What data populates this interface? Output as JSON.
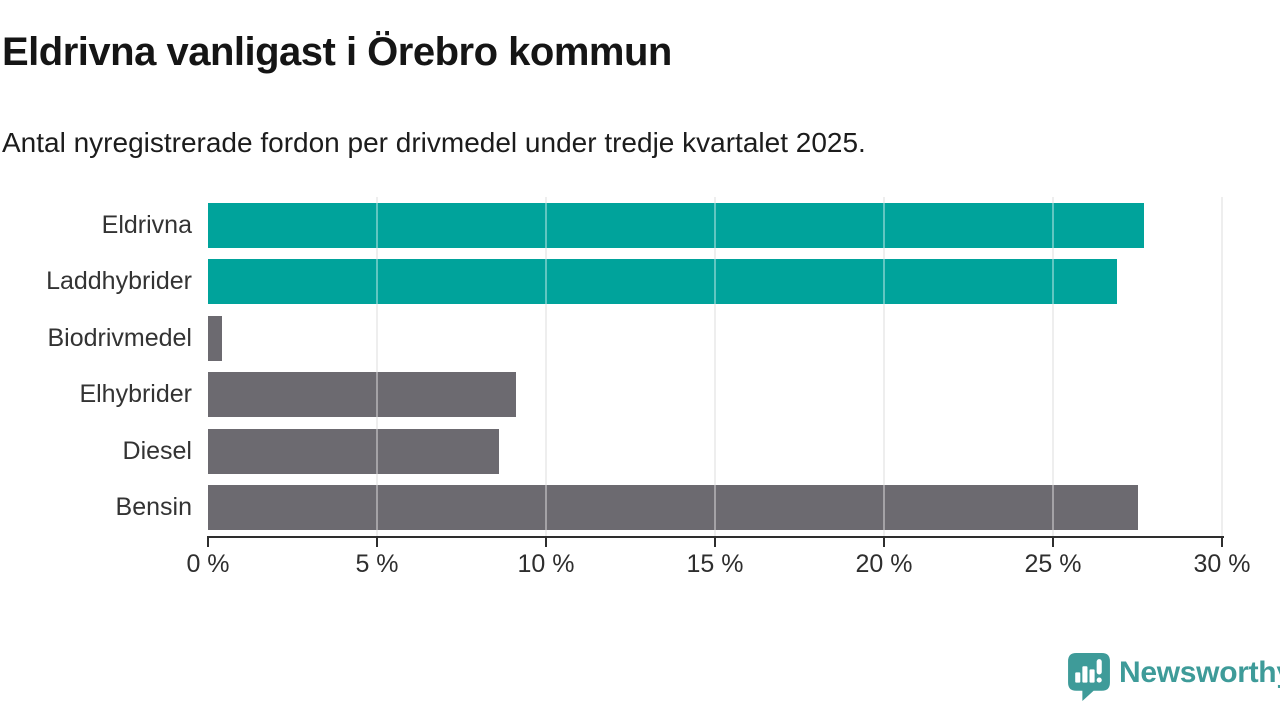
{
  "header": {
    "title": "Eldrivna vanligast i Örebro kommun",
    "subtitle": "Antal nyregistrerade fordon per drivmedel under tredje kvartalet 2025."
  },
  "chart_data": {
    "type": "bar",
    "orientation": "horizontal",
    "title": "Eldrivna vanligast i Örebro kommun",
    "subtitle": "Antal nyregistrerade fordon per drivmedel under tredje kvartalet 2025.",
    "categories": [
      "Eldrivna",
      "Laddhybrider",
      "Biodrivmedel",
      "Elhybrider",
      "Diesel",
      "Bensin"
    ],
    "values": [
      27.7,
      26.9,
      0.4,
      9.1,
      8.6,
      27.5
    ],
    "unit": "%",
    "bar_colors": [
      "#00a39b",
      "#00a39b",
      "#6c6a70",
      "#6c6a70",
      "#6c6a70",
      "#6c6a70"
    ],
    "xlim": [
      0,
      30
    ],
    "x_ticks": [
      0,
      5,
      10,
      15,
      20,
      25,
      30
    ],
    "x_tick_labels": [
      "0 %",
      "5 %",
      "10 %",
      "15 %",
      "20 %",
      "25 %",
      "30 %"
    ],
    "grid": true,
    "legend": false,
    "gridlines_over_bars": true
  },
  "branding": {
    "name": "Newsworthy",
    "color": "#3e9b99",
    "icon": "newsworthy-bubble-barchart-icon"
  },
  "colors": {
    "highlight": "#00a39b",
    "neutral": "#6c6a70",
    "gridline": "#e4e4e4",
    "axis": "#2e2e2e",
    "text": "#151515",
    "background": "#ffffff"
  }
}
